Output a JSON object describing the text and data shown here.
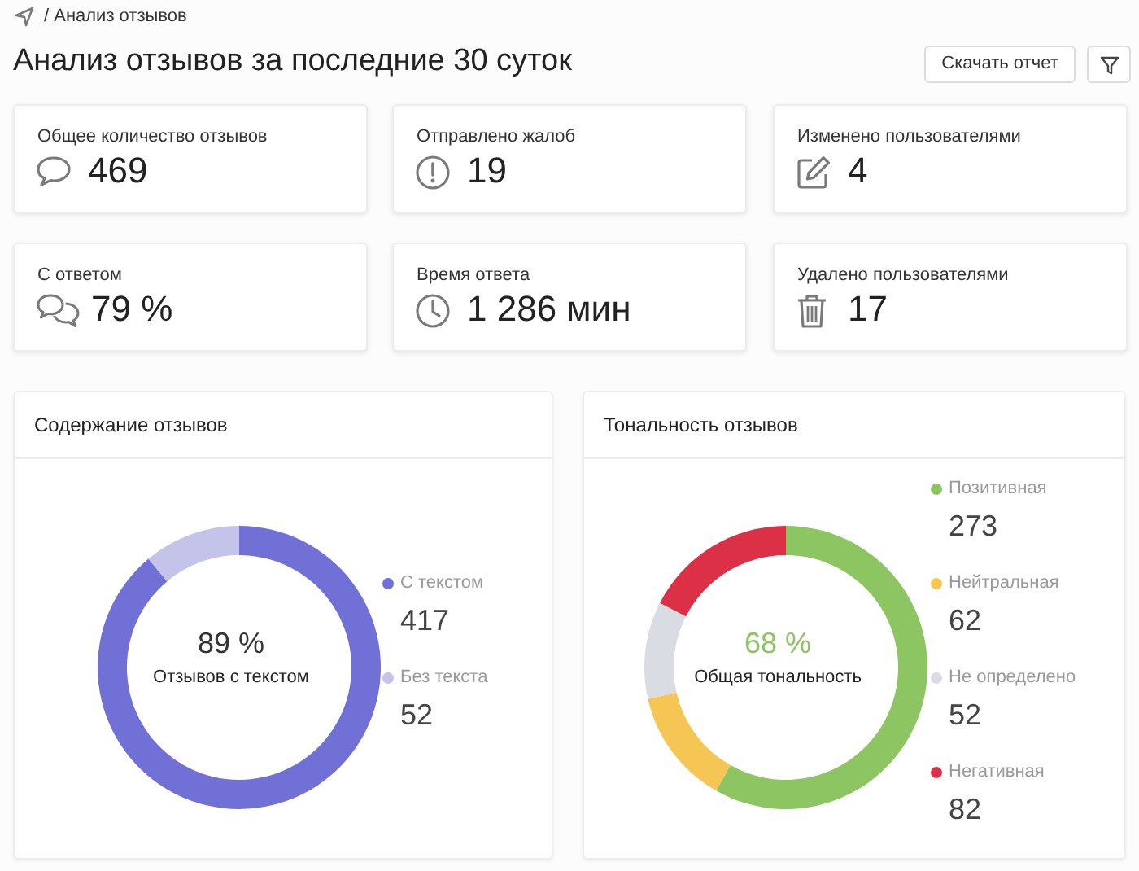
{
  "chart_data": [
    {
      "type": "other",
      "title": "Анализ отзывов за последние 30 суток",
      "annotations": [
        "/ Анализ отзывов",
        "Скачать отчет",
        "Общее количество отзывов",
        "469",
        "Отправлено жалоб",
        "19",
        "Изменено пользователями",
        "4",
        "С ответом",
        "79 %",
        "Время ответа",
        "1 286 мин",
        "Удалено пользователями",
        "17"
      ]
    },
    {
      "type": "donut",
      "title": "Содержание отзывов",
      "categories": [
        "С текстом",
        "Без текста"
      ],
      "values": [
        417,
        52
      ],
      "colors": [
        "#7170d6",
        "#c4c4ea"
      ],
      "data_labels": true,
      "legend": "right",
      "annotations": [
        "89 %",
        "Отзывов с текстом"
      ]
    },
    {
      "type": "donut",
      "title": "Тональность отзывов",
      "categories": [
        "Позитивная",
        "Нейтральная",
        "Не определено",
        "Негативная"
      ],
      "values": [
        273,
        62,
        52,
        82
      ],
      "colors": [
        "#8dc563",
        "#f5c654",
        "#d9dce3",
        "#dc3047"
      ],
      "data_labels": true,
      "legend": "right",
      "annotations": [
        "68 %",
        "Общая тональность"
      ]
    }
  ]
}
